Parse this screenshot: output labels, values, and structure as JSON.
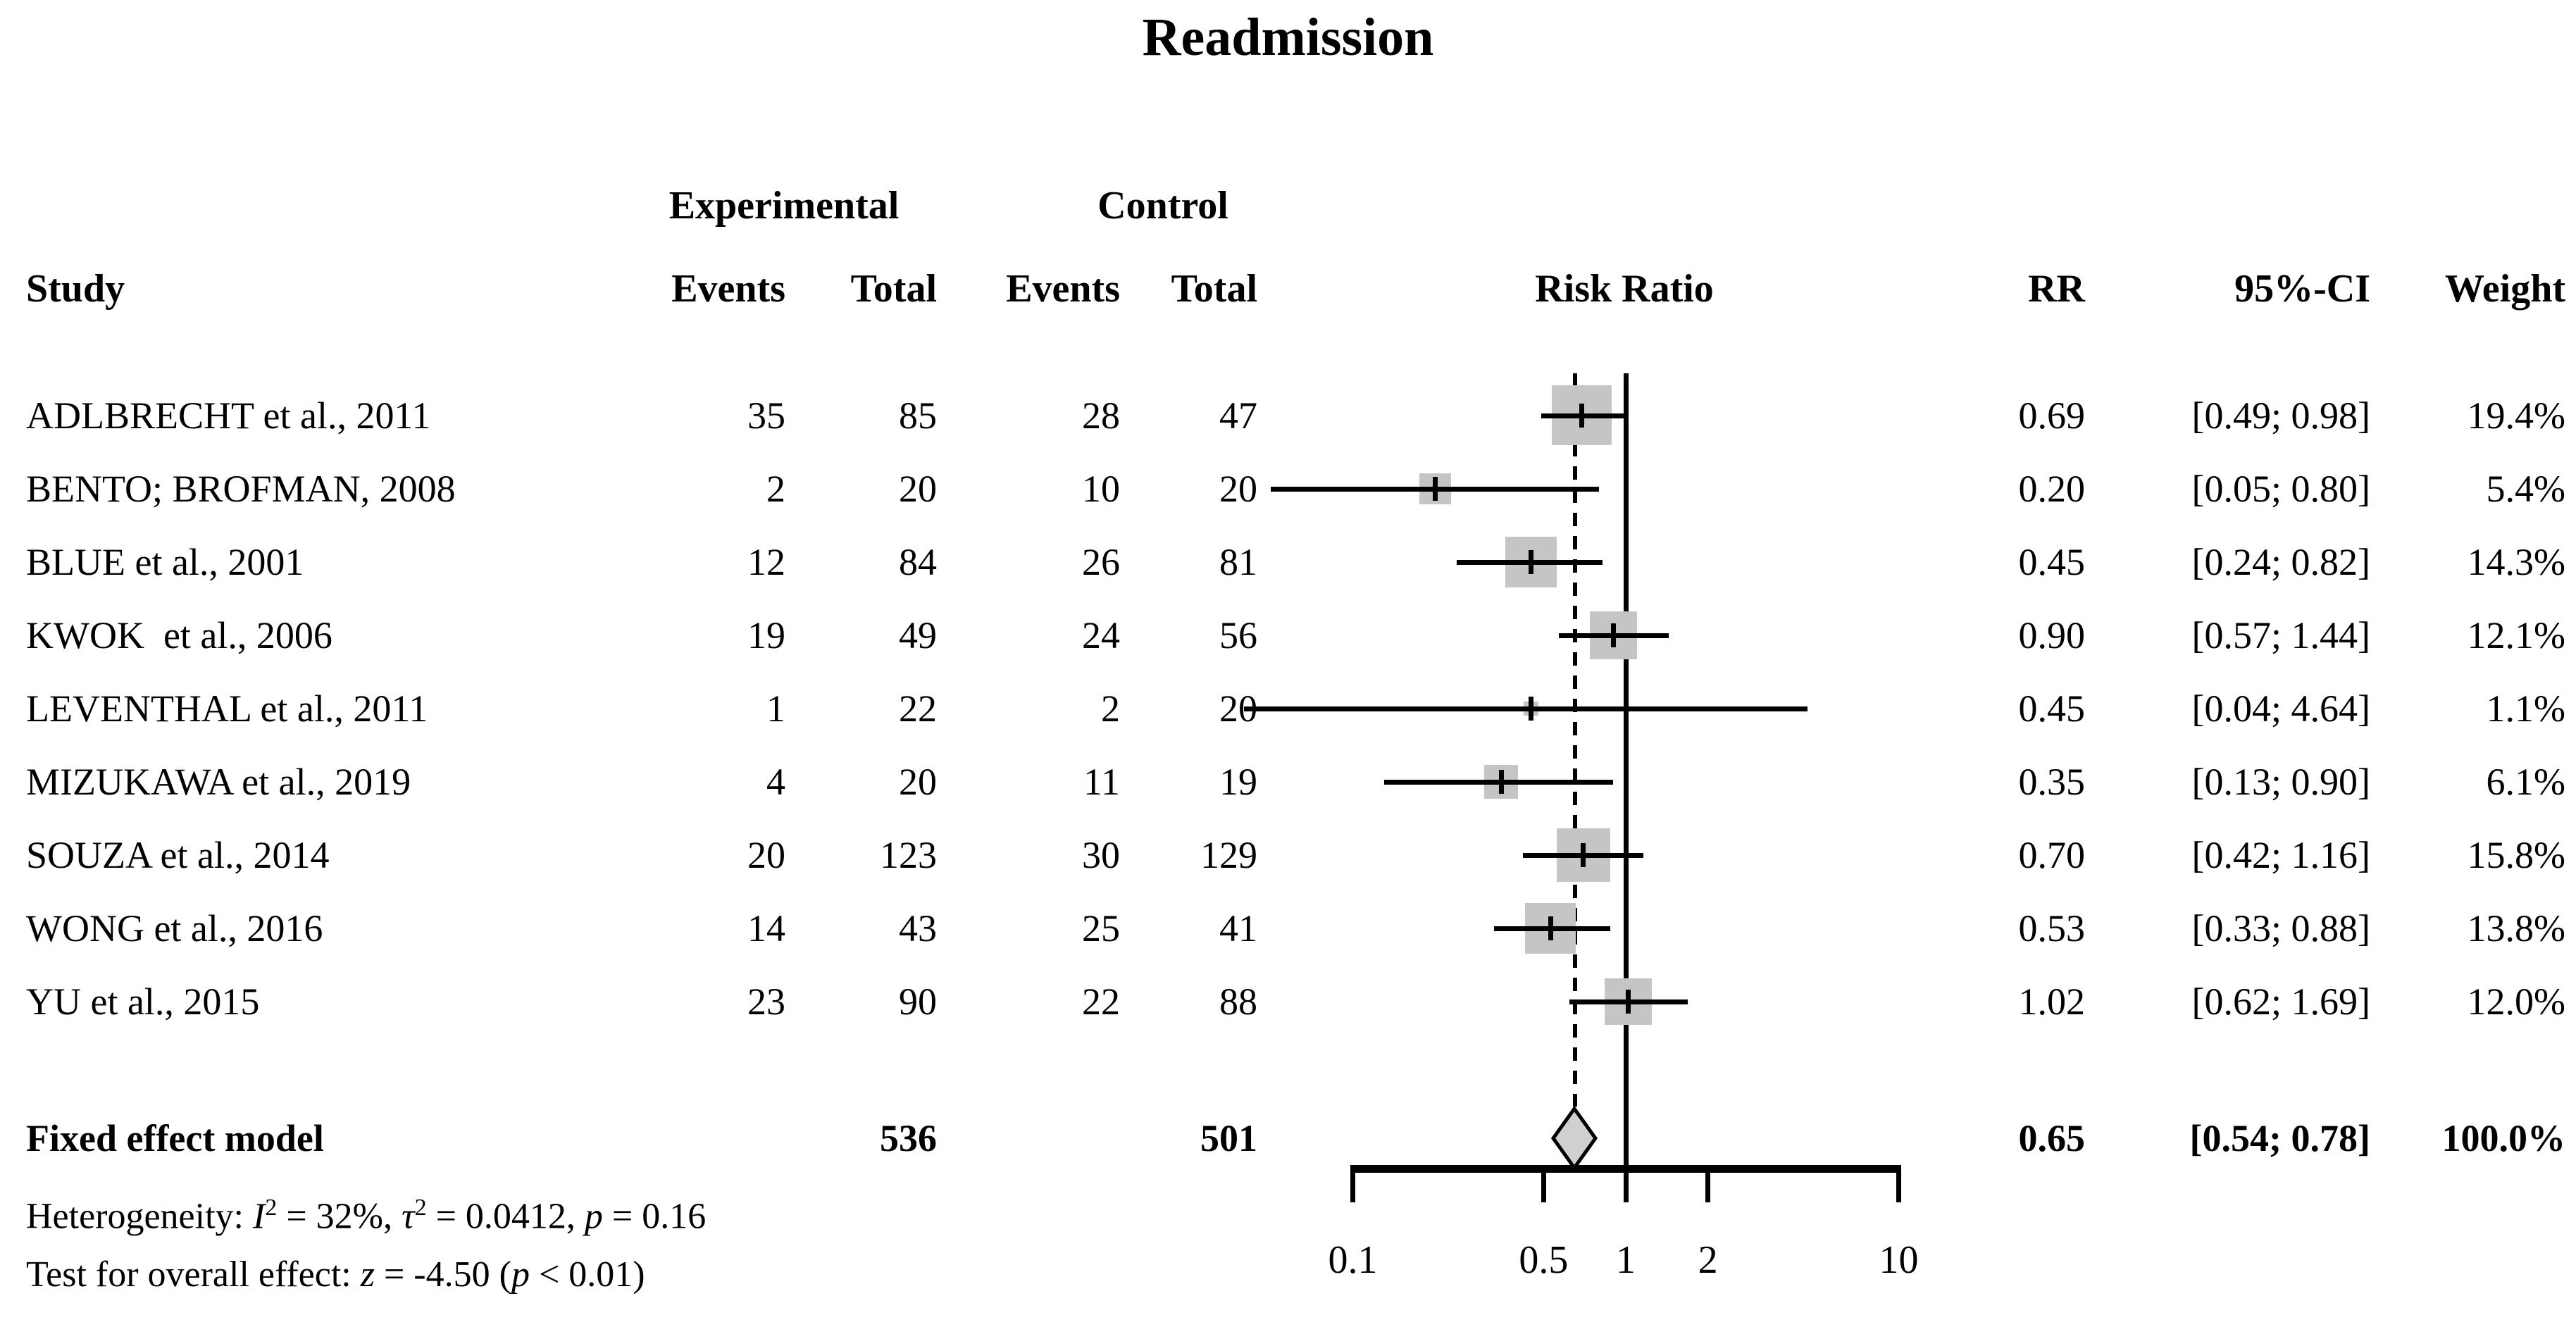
{
  "title": "Readmission",
  "header": {
    "group_experimental": "Experimental",
    "group_control": "Control",
    "study": "Study",
    "events": "Events",
    "total": "Total",
    "risk_ratio": "Risk Ratio",
    "rr": "RR",
    "ci": "95%-CI",
    "weight": "Weight"
  },
  "chart_data": {
    "type": "table",
    "subtype": "forest-plot",
    "title": "Readmission",
    "effect_measure": "Risk Ratio",
    "x_axis": {
      "scale": "log",
      "ticks": [
        0.1,
        0.5,
        1,
        2,
        10
      ],
      "tick_labels": [
        "0.1",
        "0.5",
        "1",
        "2",
        "10"
      ],
      "reference_line": 1.0,
      "dashed_line_at": 0.65
    },
    "studies": [
      {
        "label": "ADLBRECHT et al., 2011",
        "exp_events": "35",
        "exp_total": "85",
        "ctrl_events": "28",
        "ctrl_total": "47",
        "rr": 0.69,
        "ci_lo": 0.49,
        "ci_hi": 0.98,
        "rr_text": "0.69",
        "ci_text": "[0.49; 0.98]",
        "weight": 19.4,
        "weight_text": "19.4%"
      },
      {
        "label": "BENTO; BROFMAN, 2008",
        "exp_events": "2",
        "exp_total": "20",
        "ctrl_events": "10",
        "ctrl_total": "20",
        "rr": 0.2,
        "ci_lo": 0.05,
        "ci_hi": 0.8,
        "rr_text": "0.20",
        "ci_text": "[0.05; 0.80]",
        "weight": 5.4,
        "weight_text": "5.4%"
      },
      {
        "label": "BLUE et al., 2001",
        "exp_events": "12",
        "exp_total": "84",
        "ctrl_events": "26",
        "ctrl_total": "81",
        "rr": 0.45,
        "ci_lo": 0.24,
        "ci_hi": 0.82,
        "rr_text": "0.45",
        "ci_text": "[0.24; 0.82]",
        "weight": 14.3,
        "weight_text": "14.3%"
      },
      {
        "label": "KWOK  et al., 2006",
        "exp_events": "19",
        "exp_total": "49",
        "ctrl_events": "24",
        "ctrl_total": "56",
        "rr": 0.9,
        "ci_lo": 0.57,
        "ci_hi": 1.44,
        "rr_text": "0.90",
        "ci_text": "[0.57; 1.44]",
        "weight": 12.1,
        "weight_text": "12.1%"
      },
      {
        "label": "LEVENTHAL et al., 2011",
        "exp_events": "1",
        "exp_total": "22",
        "ctrl_events": "2",
        "ctrl_total": "20",
        "rr": 0.45,
        "ci_lo": 0.04,
        "ci_hi": 4.64,
        "rr_text": "0.45",
        "ci_text": "[0.04; 4.64]",
        "weight": 1.1,
        "weight_text": "1.1%"
      },
      {
        "label": "MIZUKAWA et al., 2019",
        "exp_events": "4",
        "exp_total": "20",
        "ctrl_events": "11",
        "ctrl_total": "19",
        "rr": 0.35,
        "ci_lo": 0.13,
        "ci_hi": 0.9,
        "rr_text": "0.35",
        "ci_text": "[0.13; 0.90]",
        "weight": 6.1,
        "weight_text": "6.1%"
      },
      {
        "label": "SOUZA et al., 2014",
        "exp_events": "20",
        "exp_total": "123",
        "ctrl_events": "30",
        "ctrl_total": "129",
        "rr": 0.7,
        "ci_lo": 0.42,
        "ci_hi": 1.16,
        "rr_text": "0.70",
        "ci_text": "[0.42; 1.16]",
        "weight": 15.8,
        "weight_text": "15.8%"
      },
      {
        "label": "WONG et al., 2016",
        "exp_events": "14",
        "exp_total": "43",
        "ctrl_events": "25",
        "ctrl_total": "41",
        "rr": 0.53,
        "ci_lo": 0.33,
        "ci_hi": 0.88,
        "rr_text": "0.53",
        "ci_text": "[0.33; 0.88]",
        "weight": 13.8,
        "weight_text": "13.8%"
      },
      {
        "label": "YU et al., 2015",
        "exp_events": "23",
        "exp_total": "90",
        "ctrl_events": "22",
        "ctrl_total": "88",
        "rr": 1.02,
        "ci_lo": 0.62,
        "ci_hi": 1.69,
        "rr_text": "1.02",
        "ci_text": "[0.62; 1.69]",
        "weight": 12.0,
        "weight_text": "12.0%"
      }
    ],
    "summary": {
      "label": "Fixed effect model",
      "exp_total": "536",
      "ctrl_total": "501",
      "rr": 0.65,
      "ci_lo": 0.54,
      "ci_hi": 0.78,
      "rr_text": "0.65",
      "ci_text": "[0.54; 0.78]",
      "weight_text": "100.0%"
    }
  },
  "footnotes": {
    "heterogeneity": {
      "prefix": "Heterogeneity: ",
      "i_sym": "I",
      "i_sup": "2",
      "i_rest": " = 32%, ",
      "tau_sym": "τ",
      "tau_sup": "2",
      "tau_rest": " = 0.0412, ",
      "p_sym": "p",
      "p_rest": " = 0.16"
    },
    "overall": {
      "prefix": "Test for overall effect: ",
      "z_sym": "z",
      "z_rest": " = -4.50 (",
      "p_sym": "p",
      "p_rest": " < 0.01)"
    }
  },
  "colors": {
    "square": "#c5c5c5",
    "diamond_fill": "#d0d0d0",
    "line": "#000000",
    "text": "#000000",
    "background": "#ffffff"
  }
}
